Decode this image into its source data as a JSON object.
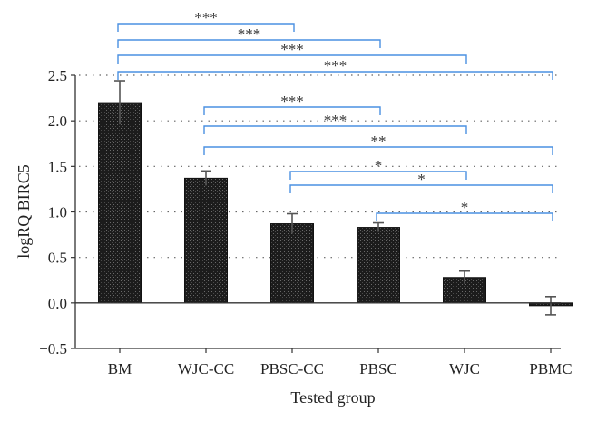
{
  "chart_data": {
    "type": "bar",
    "categories": [
      "BM",
      "WJC-CC",
      "PBSC-CC",
      "PBSC",
      "WJC",
      "PBMC"
    ],
    "values": [
      2.2,
      1.37,
      0.87,
      0.83,
      0.28,
      -0.03
    ],
    "errors": [
      0.24,
      0.08,
      0.11,
      0.05,
      0.07,
      0.1
    ],
    "xlabel": "Tested group",
    "ylabel": "logRQ BIRC5",
    "ylim": [
      -0.5,
      2.5
    ],
    "yticks": [
      "−0.5",
      "0.0",
      "0.5",
      "1.0",
      "1.5",
      "2.0",
      "2.5"
    ],
    "grid": "horizontal dotted",
    "colors": {
      "bar": "#1c1c1c",
      "bracket": "#4a90e2"
    },
    "significance": [
      {
        "from": "BM",
        "to": "PBSC-CC",
        "label": "***"
      },
      {
        "from": "BM",
        "to": "PBSC",
        "label": "***"
      },
      {
        "from": "BM",
        "to": "WJC",
        "label": "***"
      },
      {
        "from": "BM",
        "to": "PBMC",
        "label": "***"
      },
      {
        "from": "WJC-CC",
        "to": "PBSC",
        "label": "***"
      },
      {
        "from": "WJC-CC",
        "to": "WJC",
        "label": "***"
      },
      {
        "from": "WJC-CC",
        "to": "PBMC",
        "label": "**"
      },
      {
        "from": "PBSC-CC",
        "to": "WJC",
        "label": "*"
      },
      {
        "from": "PBSC-CC",
        "to": "PBMC",
        "label": "*"
      },
      {
        "from": "PBSC",
        "to": "PBMC",
        "label": "*"
      }
    ]
  }
}
